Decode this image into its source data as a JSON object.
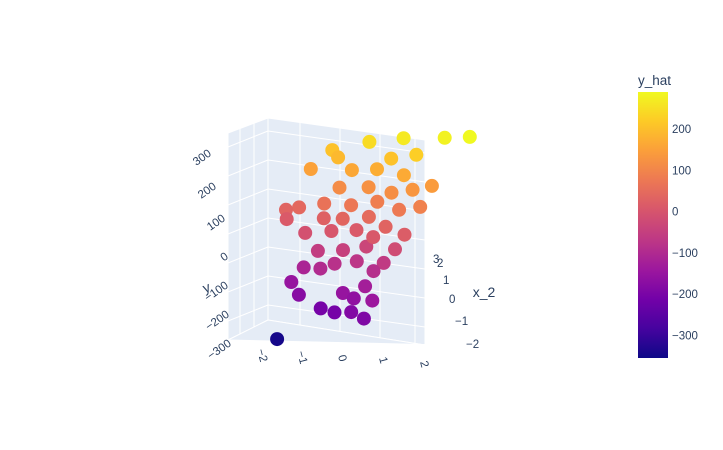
{
  "chart_data": {
    "type": "scatter3d",
    "axes": {
      "x": {
        "title": "",
        "ticks": [
          "−2",
          "−1",
          "0",
          "1",
          "2"
        ]
      },
      "y": {
        "title": "x_2",
        "ticks": [
          "−2",
          "−1",
          "0",
          "1",
          "2",
          "3"
        ]
      },
      "z": {
        "title": "y",
        "ticks": [
          "−300",
          "−200",
          "−100",
          "0",
          "100",
          "200",
          "300"
        ]
      }
    },
    "colorbar": {
      "title": "y_hat",
      "range": [
        -355,
        290
      ],
      "ticks": [
        "200",
        "100",
        "0",
        "−100",
        "−200",
        "−300"
      ],
      "tick_values": [
        200,
        100,
        0,
        -100,
        -200,
        -300
      ],
      "colorscale": [
        "#0d0887",
        "#46039f",
        "#7201a8",
        "#9c179e",
        "#bd3786",
        "#d8576b",
        "#ed7953",
        "#fb9f3a",
        "#fdca26",
        "#f0f921"
      ]
    },
    "points": [
      {
        "x": -1.6,
        "y": 0.6,
        "z": -345
      },
      {
        "x": -1.3,
        "y": 0.8,
        "z": -150
      },
      {
        "x": -1.1,
        "y": 1.2,
        "z": -110
      },
      {
        "x": -1.0,
        "y": 0.4,
        "z": -175
      },
      {
        "x": -0.4,
        "y": 0.2,
        "z": -205
      },
      {
        "x": 0.0,
        "y": 0.0,
        "z": -205
      },
      {
        "x": 0.5,
        "y": -0.3,
        "z": -185
      },
      {
        "x": 0.9,
        "y": -0.6,
        "z": -190
      },
      {
        "x": 0.1,
        "y": 0.4,
        "z": -150
      },
      {
        "x": 0.4,
        "y": 0.3,
        "z": -160
      },
      {
        "x": 1.0,
        "y": -0.2,
        "z": -140
      },
      {
        "x": 0.6,
        "y": 0.6,
        "z": -125
      },
      {
        "x": -0.6,
        "y": 0.9,
        "z": -95
      },
      {
        "x": -0.3,
        "y": 1.1,
        "z": -80
      },
      {
        "x": 0.2,
        "y": 1.3,
        "z": -70
      },
      {
        "x": 0.7,
        "y": 1.0,
        "z": -85
      },
      {
        "x": -0.8,
        "y": 1.4,
        "z": -55
      },
      {
        "x": -0.2,
        "y": 1.5,
        "z": -45
      },
      {
        "x": 0.3,
        "y": 1.8,
        "z": -35
      },
      {
        "x": 0.9,
        "y": 1.2,
        "z": -60
      },
      {
        "x": -1.2,
        "y": 1.7,
        "z": -10
      },
      {
        "x": -0.6,
        "y": 1.9,
        "z": 0
      },
      {
        "x": 0.0,
        "y": 2.0,
        "z": 10
      },
      {
        "x": 0.5,
        "y": 1.7,
        "z": 5
      },
      {
        "x": 1.1,
        "y": 1.5,
        "z": -20
      },
      {
        "x": -1.8,
        "y": 2.2,
        "z": 10
      },
      {
        "x": -1.9,
        "y": 2.5,
        "z": 30
      },
      {
        "x": -1.6,
        "y": 2.6,
        "z": 40
      },
      {
        "x": -0.9,
        "y": 2.3,
        "z": 25
      },
      {
        "x": -0.4,
        "y": 2.2,
        "z": 35
      },
      {
        "x": 0.2,
        "y": 2.4,
        "z": 45
      },
      {
        "x": 0.7,
        "y": 2.1,
        "z": 30
      },
      {
        "x": 1.2,
        "y": 2.0,
        "z": 15
      },
      {
        "x": -1.0,
        "y": 2.7,
        "z": 60
      },
      {
        "x": -0.3,
        "y": 2.6,
        "z": 70
      },
      {
        "x": 0.3,
        "y": 2.8,
        "z": 85
      },
      {
        "x": 0.9,
        "y": 2.6,
        "z": 75
      },
      {
        "x": 1.4,
        "y": 2.7,
        "z": 90
      },
      {
        "x": -0.7,
        "y": 3.0,
        "z": 110
      },
      {
        "x": 0.0,
        "y": 3.1,
        "z": 120
      },
      {
        "x": 0.6,
        "y": 3.0,
        "z": 115
      },
      {
        "x": 1.1,
        "y": 3.1,
        "z": 130
      },
      {
        "x": -0.5,
        "y": 3.4,
        "z": 160
      },
      {
        "x": 0.1,
        "y": 3.5,
        "z": 170
      },
      {
        "x": 0.8,
        "y": 3.4,
        "z": 165
      },
      {
        "x": -0.9,
        "y": 3.6,
        "z": 190
      },
      {
        "x": 0.4,
        "y": 3.7,
        "z": 205
      },
      {
        "x": 1.0,
        "y": 3.8,
        "z": 225
      },
      {
        "x": -0.2,
        "y": 3.9,
        "z": 245
      },
      {
        "x": 0.6,
        "y": 4.1,
        "z": 265
      },
      {
        "x": 1.6,
        "y": 4.2,
        "z": 280
      },
      {
        "x": 2.2,
        "y": 4.3,
        "z": 290
      },
      {
        "x": -1.5,
        "y": 3.3,
        "z": 150
      },
      {
        "x": -1.1,
        "y": 3.8,
        "z": 205
      },
      {
        "x": 1.5,
        "y": 3.4,
        "z": 140
      }
    ]
  }
}
